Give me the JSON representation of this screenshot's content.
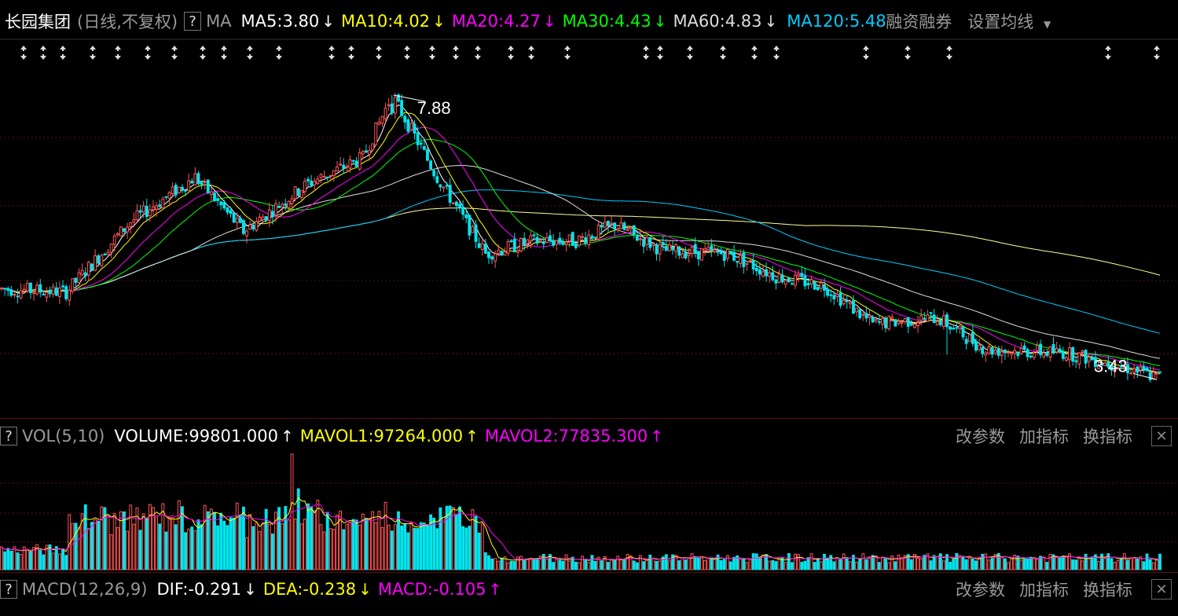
{
  "header": {
    "stock_name": "长园集团",
    "period": "(日线,不复权)",
    "help": "?",
    "indicator": "MA",
    "ma": [
      {
        "label": "MA5:3.80",
        "color": "#ffffff",
        "trend": "down"
      },
      {
        "label": "MA10:4.02",
        "color": "#ffff00",
        "trend": "down"
      },
      {
        "label": "MA20:4.27",
        "color": "#ff00ff",
        "trend": "down"
      },
      {
        "label": "MA30:4.43",
        "color": "#00ff00",
        "trend": "down"
      },
      {
        "label": "MA60:4.83",
        "color": "#dddddd",
        "trend": "down"
      },
      {
        "label": "MA120:5.48",
        "color": "#00ccff",
        "trend": "none"
      }
    ],
    "margin_label": "融资融券",
    "settings_label": "设置均线"
  },
  "chart_data": {
    "type": "candlestick",
    "price_high_label": "7.88",
    "price_low_label": "3.43",
    "ylim": [
      3.2,
      8.2
    ],
    "trend_keypoints": [
      {
        "i": 0,
        "p": 4.85
      },
      {
        "i": 20,
        "p": 4.8
      },
      {
        "i": 40,
        "p": 5.9
      },
      {
        "i": 60,
        "p": 6.6
      },
      {
        "i": 75,
        "p": 5.75
      },
      {
        "i": 95,
        "p": 6.5
      },
      {
        "i": 112,
        "p": 6.9
      },
      {
        "i": 121,
        "p": 7.88
      },
      {
        "i": 135,
        "p": 6.6
      },
      {
        "i": 150,
        "p": 5.4
      },
      {
        "i": 165,
        "p": 5.6
      },
      {
        "i": 178,
        "p": 5.6
      },
      {
        "i": 190,
        "p": 5.85
      },
      {
        "i": 205,
        "p": 5.45
      },
      {
        "i": 225,
        "p": 5.4
      },
      {
        "i": 240,
        "p": 5.05
      },
      {
        "i": 255,
        "p": 4.9
      },
      {
        "i": 270,
        "p": 4.3
      },
      {
        "i": 290,
        "p": 4.4
      },
      {
        "i": 305,
        "p": 3.9
      },
      {
        "i": 330,
        "p": 3.85
      },
      {
        "i": 350,
        "p": 3.6
      },
      {
        "i": 359,
        "p": 3.45
      }
    ]
  },
  "vol": {
    "help": "?",
    "name": "VOL(5,10)",
    "volume": "VOLUME:99801.000",
    "mavol1": "MAVOL1:97264.000",
    "mavol2": "MAVOL2:77835.300",
    "volume_color": "#ffffff",
    "mavol1_color": "#ffff00",
    "mavol2_color": "#ff00ff"
  },
  "macd": {
    "help": "?",
    "name": "MACD(12,26,9)",
    "dif": "DIF:-0.291",
    "dea": "DEA:-0.238",
    "macd_value": "MACD:-0.105",
    "dif_color": "#ffffff",
    "dea_color": "#ffff00",
    "macd_color": "#ff00ff"
  },
  "tools": {
    "change_params": "改参数",
    "add_indicator": "加指标",
    "switch_indicator": "换指标",
    "close": "✕"
  },
  "arrows": {
    "down": "↓",
    "up": "↑"
  },
  "colors": {
    "up": "#ff5555",
    "down": "#00e5ee",
    "ma5": "#ffffff",
    "ma10": "#ffff00",
    "ma20": "#ff00ff",
    "ma30": "#00ff00",
    "ma60": "#dddddd",
    "ma120": "#00ccff",
    "slow": "#ffff99"
  }
}
